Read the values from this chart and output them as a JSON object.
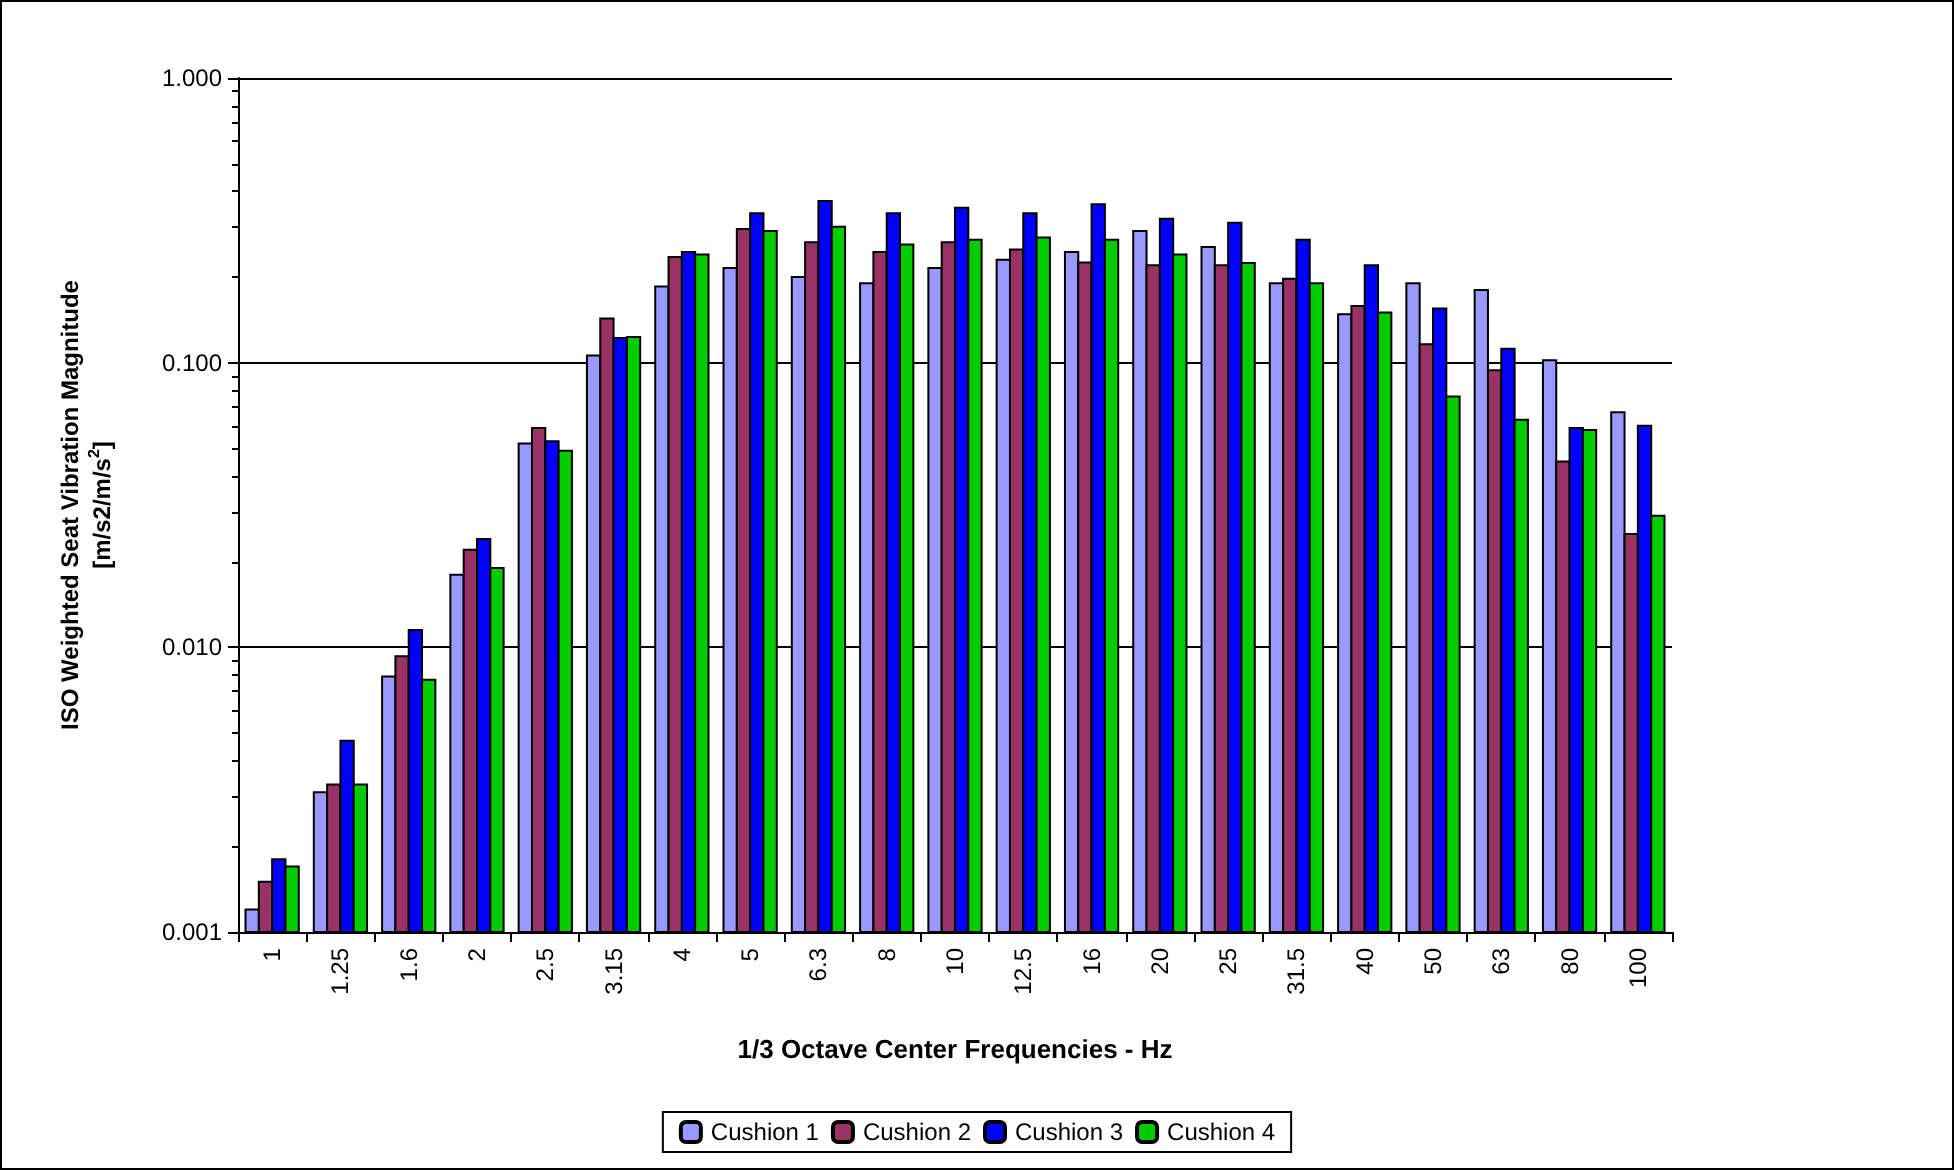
{
  "chart_data": {
    "type": "bar",
    "xlabel": "1/3 Octave Center Frequencies - Hz",
    "ylabel": "ISO Weighted Seat Vibration Magnitude\n[m/s2/m/s$^{2}$]",
    "categories": [
      "1",
      "1.25",
      "1.6",
      "2",
      "2.5",
      "3.15",
      "4",
      "5",
      "6.3",
      "8",
      "10",
      "12.5",
      "16",
      "20",
      "25",
      "31.5",
      "40",
      "50",
      "63",
      "80",
      "100"
    ],
    "series": [
      {
        "name": "Cushion 1",
        "color": "#9999ff",
        "values": [
          0.0012,
          0.0031,
          0.0079,
          0.018,
          0.052,
          0.106,
          0.185,
          0.215,
          0.2,
          0.19,
          0.215,
          0.23,
          0.245,
          0.29,
          0.255,
          0.19,
          0.148,
          0.19,
          0.18,
          0.102,
          0.067
        ]
      },
      {
        "name": "Cushion 2",
        "color": "#993366",
        "values": [
          0.0015,
          0.0033,
          0.0093,
          0.022,
          0.059,
          0.143,
          0.235,
          0.295,
          0.265,
          0.245,
          0.265,
          0.25,
          0.225,
          0.22,
          0.22,
          0.197,
          0.158,
          0.116,
          0.094,
          0.045,
          0.025
        ]
      },
      {
        "name": "Cushion 3",
        "color": "#0000ff",
        "values": [
          0.0018,
          0.0047,
          0.0115,
          0.024,
          0.053,
          0.122,
          0.245,
          0.335,
          0.37,
          0.335,
          0.35,
          0.335,
          0.36,
          0.32,
          0.31,
          0.27,
          0.22,
          0.155,
          0.112,
          0.059,
          0.06
        ]
      },
      {
        "name": "Cushion 4",
        "color": "#00cc00",
        "values": [
          0.0017,
          0.0033,
          0.0077,
          0.019,
          0.049,
          0.123,
          0.24,
          0.29,
          0.3,
          0.26,
          0.27,
          0.275,
          0.27,
          0.24,
          0.224,
          0.19,
          0.15,
          0.076,
          0.063,
          0.058,
          0.029
        ]
      }
    ],
    "log": "y",
    "ylim": [
      0.001,
      1
    ],
    "yticks": [
      {
        "value": 0.001,
        "label": "0.001"
      },
      {
        "value": 0.01,
        "label": "0.010"
      },
      {
        "value": 0.1,
        "label": "0.100"
      },
      {
        "value": 1,
        "label": "1.000"
      }
    ],
    "grid": "y",
    "legend": "bottom"
  }
}
